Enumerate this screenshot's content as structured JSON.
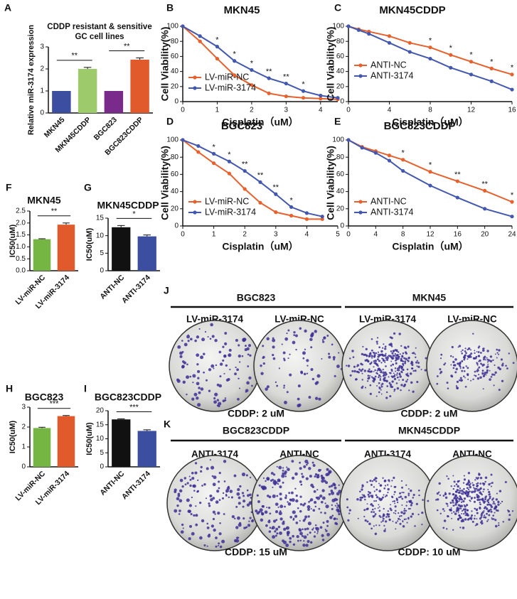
{
  "chart_data": [
    {
      "type": "bar",
      "panel": "A",
      "title": [
        "CDDP resistant & sensitive",
        "GC cell lines"
      ],
      "ylabel": "Relative miR-3174 expression",
      "categories": [
        "MKN45",
        "MKN45CDDP",
        "BGC823",
        "BGC823CDDP"
      ],
      "values": [
        1,
        2.0,
        1,
        2.42
      ],
      "errors": [
        0,
        0.07,
        0,
        0.08
      ],
      "colors": [
        "#3b4ea0",
        "#9dcb6b",
        "#7a2a8a",
        "#e05a2b"
      ],
      "ylim": [
        0,
        3
      ],
      "yticks": [
        0,
        1,
        2,
        3
      ],
      "brackets": [
        {
          "pair": [
            0,
            1
          ],
          "label": "**"
        },
        {
          "pair": [
            2,
            3
          ],
          "label": "**"
        }
      ]
    },
    {
      "type": "line",
      "panel": "B",
      "title": "MKN45",
      "xlabel": "Cisplatin（uM）",
      "ylabel": "Cell Viability(%)",
      "x": [
        0,
        0.5,
        1,
        1.5,
        2,
        2.5,
        3,
        3.5,
        4,
        4.5
      ],
      "series": [
        {
          "name": "LV-miR-NC",
          "color": "#e8602c",
          "values": [
            100,
            80,
            57,
            35,
            22,
            11,
            7,
            5,
            4,
            3
          ]
        },
        {
          "name": "LV-miR-3174",
          "color": "#4257b0",
          "values": [
            100,
            87,
            73,
            54,
            42,
            31,
            24,
            14,
            8,
            5
          ]
        }
      ],
      "xlim": [
        0,
        4.5
      ],
      "xticks": [
        0,
        1,
        2,
        3,
        4
      ],
      "ylim": [
        0,
        100
      ],
      "yticks": [
        0,
        20,
        40,
        60,
        80,
        100
      ],
      "legend": "lower left",
      "annotations": [
        {
          "x": 1,
          "label": "*"
        },
        {
          "x": 1.5,
          "label": "*"
        },
        {
          "x": 2,
          "label": "*"
        },
        {
          "x": 2.5,
          "label": "**"
        },
        {
          "x": 3,
          "label": "**"
        },
        {
          "x": 3.5,
          "label": "*"
        }
      ]
    },
    {
      "type": "line",
      "panel": "C",
      "title": "MKN45CDDP",
      "xlabel": "Cisplatin（uM）",
      "ylabel": "Cell Viability(%)",
      "x": [
        0,
        1,
        2,
        4,
        6,
        8,
        10,
        12,
        14,
        16
      ],
      "series": [
        {
          "name": "ANTI-NC",
          "color": "#e8602c",
          "values": [
            100,
            96,
            93,
            87,
            78,
            72,
            62,
            53,
            44,
            36
          ]
        },
        {
          "name": "ANTI-3174",
          "color": "#4257b0",
          "values": [
            100,
            95,
            90,
            78,
            66,
            57,
            45,
            36,
            27,
            16
          ]
        }
      ],
      "xlim": [
        0,
        16
      ],
      "xticks": [
        0,
        4,
        8,
        12,
        16
      ],
      "ylim": [
        0,
        100
      ],
      "yticks": [
        0,
        20,
        40,
        60,
        80,
        100
      ],
      "legend": "center left",
      "annotations": [
        {
          "x": 8,
          "label": "*"
        },
        {
          "x": 10,
          "label": "*"
        },
        {
          "x": 12,
          "label": "*"
        },
        {
          "x": 14,
          "label": "*"
        },
        {
          "x": 16,
          "label": "*"
        }
      ]
    },
    {
      "type": "line",
      "panel": "D",
      "title": "BGC823",
      "xlabel": "Cisplatin（uM）",
      "ylabel": "Cell Viability(%)",
      "x": [
        0,
        0.5,
        1,
        1.5,
        2,
        2.5,
        3,
        3.5,
        4,
        4.5
      ],
      "series": [
        {
          "name": "LV-miR-NC",
          "color": "#e8602c",
          "values": [
            100,
            86,
            73,
            61,
            43,
            27,
            16,
            12,
            8,
            8
          ]
        },
        {
          "name": "LV-miR-3174",
          "color": "#4257b0",
          "values": [
            100,
            93,
            84,
            75,
            64,
            51,
            37,
            22,
            15,
            11
          ]
        }
      ],
      "xlim": [
        0,
        5
      ],
      "xticks": [
        0,
        1,
        2,
        3,
        4,
        5
      ],
      "ylim": [
        0,
        100
      ],
      "yticks": [
        0,
        20,
        40,
        60,
        80,
        100
      ],
      "legend": "lower left",
      "annotations": [
        {
          "x": 1,
          "label": "*"
        },
        {
          "x": 1.5,
          "label": "*"
        },
        {
          "x": 2,
          "label": "**"
        },
        {
          "x": 2.5,
          "label": "**"
        },
        {
          "x": 3,
          "label": "**"
        },
        {
          "x": 3.5,
          "label": "*"
        }
      ]
    },
    {
      "type": "line",
      "panel": "E",
      "title": "BGC823CDDP",
      "xlabel": "Cisplatin（uM）",
      "ylabel": "Cell Viability(%)",
      "x": [
        0,
        2,
        4,
        6,
        8,
        12,
        16,
        20,
        24
      ],
      "series": [
        {
          "name": "ANTI-NC",
          "color": "#e8602c",
          "values": [
            100,
            92,
            87,
            82,
            77,
            63,
            52,
            41,
            28
          ]
        },
        {
          "name": "ANTI-3174",
          "color": "#4257b0",
          "values": [
            100,
            91,
            85,
            76,
            64,
            47,
            33,
            20,
            11
          ]
        }
      ],
      "xlim": [
        0,
        24
      ],
      "xticks": [
        0,
        4,
        8,
        12,
        16,
        20,
        24
      ],
      "ylim": [
        0,
        100
      ],
      "yticks": [
        0,
        20,
        40,
        60,
        80,
        100
      ],
      "legend": "lower left",
      "annotations": [
        {
          "x": 8,
          "label": "*"
        },
        {
          "x": 12,
          "label": "*"
        },
        {
          "x": 16,
          "label": "**"
        },
        {
          "x": 20,
          "label": "**"
        },
        {
          "x": 24,
          "label": "*"
        }
      ]
    },
    {
      "type": "bar",
      "panel": "F",
      "title": "MKN45",
      "ylabel": "IC50(uM)",
      "categories": [
        "LV-miR-NC",
        "LV-miR-3174"
      ],
      "values": [
        1.32,
        1.93
      ],
      "errors": [
        0.02,
        0.07
      ],
      "colors": [
        "#74b544",
        "#e05a2b"
      ],
      "ylim": [
        0,
        2.5
      ],
      "yticks": [
        {
          "value": 0,
          "label": "0.0"
        },
        {
          "value": 0.5,
          "label": "0.5"
        },
        {
          "value": 1,
          "label": "1.0"
        },
        {
          "value": 1.5,
          "label": "1.5"
        },
        {
          "value": 2,
          "label": "2.0"
        },
        {
          "value": 2.5,
          "label": "2.5"
        }
      ],
      "brackets": [
        {
          "pair": [
            0,
            1
          ],
          "label": "**"
        }
      ]
    },
    {
      "type": "bar",
      "panel": "G",
      "title": "MKN45CDDP",
      "ylabel": "IC50(uM)",
      "categories": [
        "ANTI-NC",
        "ANTI-3174"
      ],
      "values": [
        12.4,
        9.8
      ],
      "errors": [
        0.5,
        0.4
      ],
      "colors": [
        "#111111",
        "#3b4ea0"
      ],
      "ylim": [
        0,
        15
      ],
      "yticks": [
        0,
        5,
        10,
        15
      ],
      "brackets": [
        {
          "pair": [
            0,
            1
          ],
          "label": "*"
        }
      ]
    },
    {
      "type": "bar",
      "panel": "H",
      "title": "BGC823",
      "ylabel": "IC50(uM)",
      "categories": [
        "LV-miR-NC",
        "LV-miR-3174"
      ],
      "values": [
        1.95,
        2.55
      ],
      "errors": [
        0.04,
        0.03
      ],
      "colors": [
        "#74b544",
        "#e05a2b"
      ],
      "ylim": [
        0,
        3
      ],
      "yticks": [
        0,
        1,
        2,
        3
      ],
      "brackets": [
        {
          "pair": [
            0,
            1
          ],
          "label": "***"
        }
      ]
    },
    {
      "type": "bar",
      "panel": "I",
      "title": "BGC823CDDP",
      "ylabel": "IC50(uM)",
      "categories": [
        "ANTI-NC",
        "ANTI-3174"
      ],
      "values": [
        16.9,
        12.8
      ],
      "errors": [
        0.2,
        0.4
      ],
      "colors": [
        "#111111",
        "#3b4ea0"
      ],
      "ylim": [
        0,
        20
      ],
      "yticks": [
        0,
        5,
        10,
        15,
        20
      ],
      "brackets": [
        {
          "pair": [
            0,
            1
          ],
          "label": "***"
        }
      ]
    }
  ],
  "colony_panels": [
    {
      "panel": "J",
      "groups": [
        {
          "title": "BGC823",
          "plates": [
            "LV-miR-3174",
            "LV-miR-NC"
          ],
          "caption": "CDDP: 2 uM"
        },
        {
          "title": "MKN45",
          "plates": [
            "LV-miR-3174",
            "LV-miR-NC"
          ],
          "caption": "CDDP: 2 uM"
        }
      ]
    },
    {
      "panel": "K",
      "groups": [
        {
          "title": "BGC823CDDP",
          "plates": [
            "ANTI-3174",
            "ANTI-NC"
          ],
          "caption": "CDDP: 15 uM"
        },
        {
          "title": "MKN45CDDP",
          "plates": [
            "ANTI-3174",
            "ANTI-NC"
          ],
          "caption": "CDDP: 10 uM"
        }
      ]
    }
  ]
}
